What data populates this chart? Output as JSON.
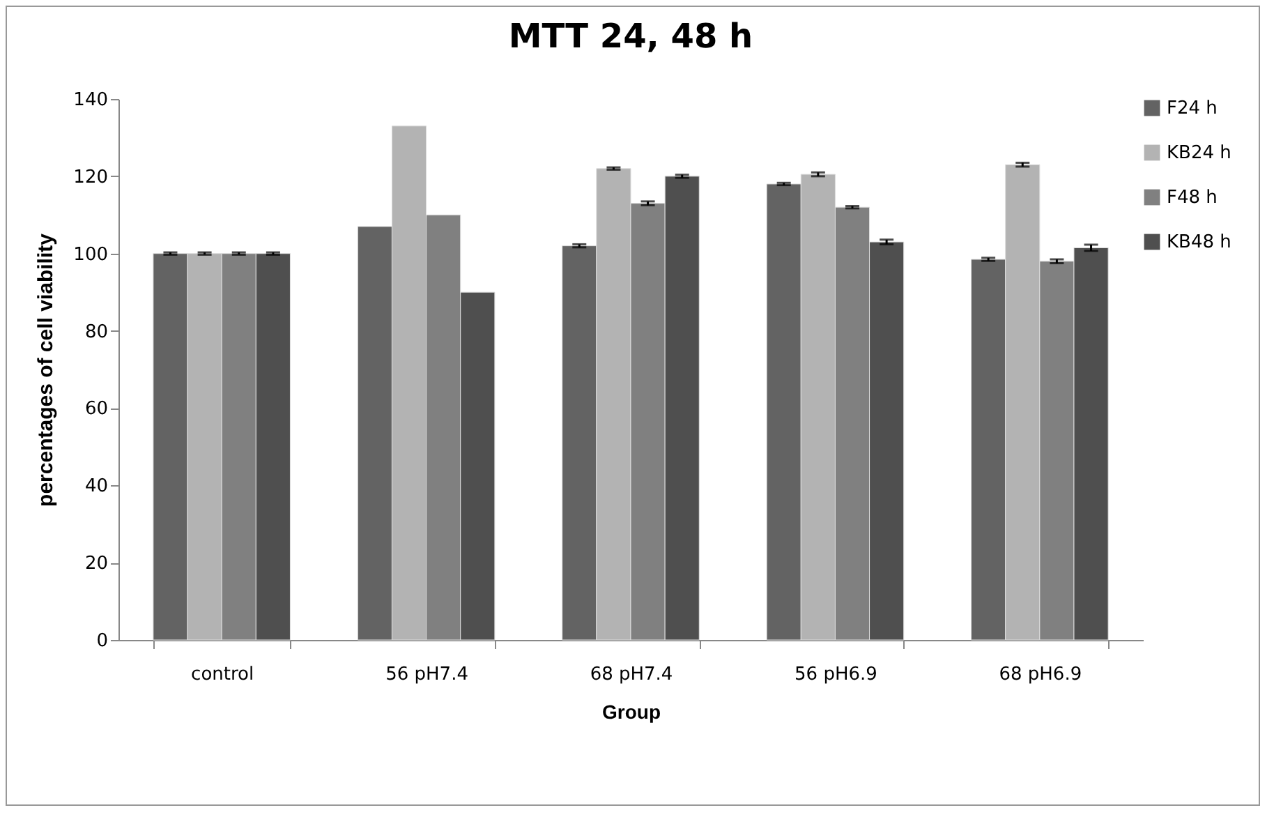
{
  "chart_data": {
    "type": "bar",
    "title": "MTT 24, 48 h",
    "xlabel": "Group",
    "ylabel": "percentages of cell viability",
    "categories": [
      "control",
      "56 pH7.4",
      "68 pH7.4",
      "56 pH6.9",
      "68 pH6.9"
    ],
    "series": [
      {
        "name": "F24 h",
        "color": "#636363",
        "values": [
          100,
          107,
          102,
          118,
          98.5
        ],
        "errors": [
          0.3,
          null,
          0.4,
          0.3,
          0.4
        ]
      },
      {
        "name": "KB24 h",
        "color": "#b3b3b3",
        "values": [
          100,
          133,
          122,
          120.5,
          123
        ],
        "errors": [
          0.3,
          null,
          0.3,
          0.5,
          0.5
        ]
      },
      {
        "name": "F48 h",
        "color": "#808080",
        "values": [
          100,
          110,
          113,
          112,
          98
        ],
        "errors": [
          0.3,
          null,
          0.5,
          0.3,
          0.5
        ]
      },
      {
        "name": "KB48 h",
        "color": "#4f4f4f",
        "values": [
          100,
          90,
          120,
          103,
          101.5
        ],
        "errors": [
          0.3,
          null,
          0.4,
          0.6,
          0.8
        ]
      }
    ],
    "ylim": [
      0,
      140
    ],
    "yticks": [
      0,
      20,
      40,
      60,
      80,
      100,
      120,
      140
    ],
    "grid": false,
    "legend": "right"
  }
}
